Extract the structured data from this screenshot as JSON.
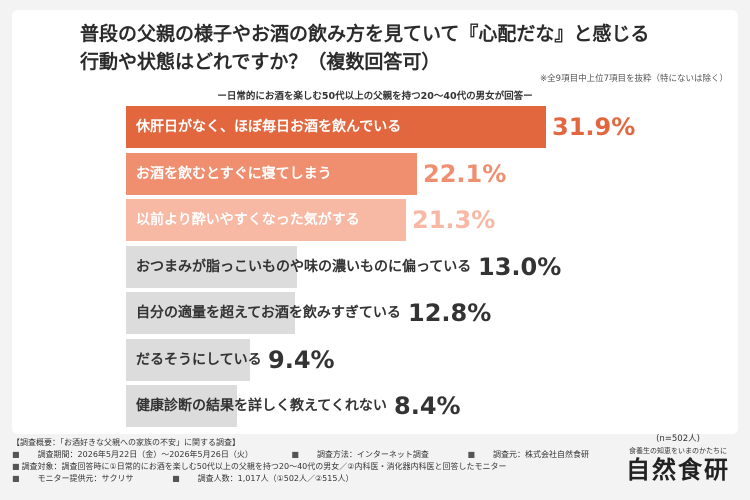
{
  "title": {
    "line1": "普段の父親の様子やお酒の飲み方を見ていて『心配だな』と感じる",
    "line2": "行動や状態はどれですか？（複数回答可）"
  },
  "note": "※全9項目中上位7項目を抜粋（特にないは除く）",
  "subtitle": "ー日常的にお酒を楽しむ50代以上の父親を持つ20〜40代の男女が回答ー",
  "chart_data": {
    "type": "bar",
    "orientation": "horizontal",
    "unit": "%",
    "categories": [
      "休肝日がなく、ほぼ毎日お酒を飲んでいる",
      "お酒を飲むとすぐに寝てしまう",
      "以前より酔いやすくなった気がする",
      "おつまみが脂っこいものや味の濃いものに偏っている",
      "自分の適量を超えてお酒を飲みすぎている",
      "だるそうにしている",
      "健康診断の結果を詳しく教えてくれない"
    ],
    "values": [
      31.9,
      22.1,
      21.3,
      13.0,
      12.8,
      9.4,
      8.4
    ],
    "value_labels": [
      "31.9%",
      "22.1%",
      "21.3%",
      "13.0%",
      "12.8%",
      "9.4%",
      "8.4%"
    ],
    "colors": [
      "#e2673f",
      "#f08f70",
      "#f7b8a4",
      "#dcdcdc",
      "#dcdcdc",
      "#dcdcdc",
      "#dcdcdc"
    ],
    "label_colors": [
      "#ffffff",
      "#ffffff",
      "#ffffff",
      "#333333",
      "#333333",
      "#333333",
      "#333333"
    ],
    "value_colors": [
      "#e2673f",
      "#f08f70",
      "#f7b8a4",
      "#333333",
      "#333333",
      "#333333",
      "#333333"
    ]
  },
  "footer": {
    "line1": "【調査概要：「お酒好きな父親への家族の不安」に関する調査】",
    "period": "調査期間：2026年5月22日（金）〜2026年5月26日（火）",
    "method": "調査方法：インターネット調査",
    "source": "調査元：株式会社自然食研",
    "target": "調査対象：調査回答時に①日常的にお酒を楽しむ50代以上の父親を持つ20〜40代の男女／②内科医・消化器内科医と回答したモニター",
    "provider": "モニター提供元：サクリサ",
    "count": "調査人数：1,017人（①502人／②515人）"
  },
  "brand": {
    "n": "(n=502人)",
    "tagline": "食養生の知恵をいまのかたちに",
    "logo": "自然食研"
  }
}
